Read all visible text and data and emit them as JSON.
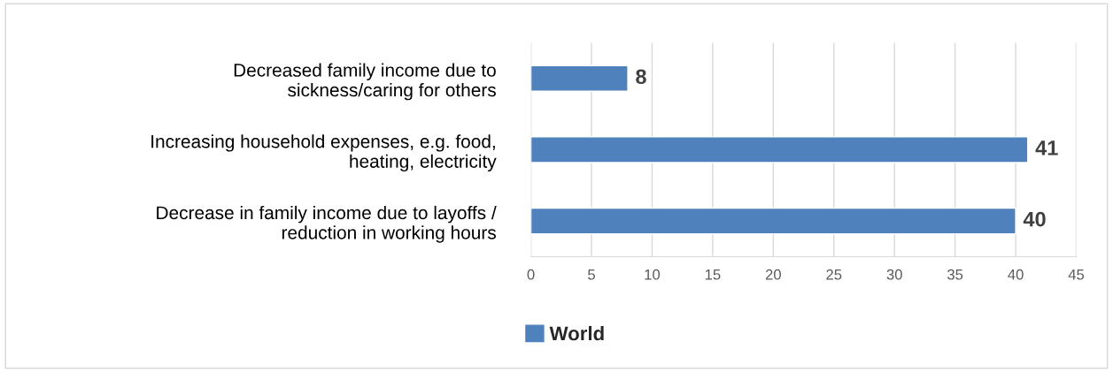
{
  "chart_data": {
    "type": "bar",
    "orientation": "horizontal",
    "categories": [
      "Decreased family income due to\nsickness/caring for others",
      "Increasing household expenses, e.g. food,\nheating, electricity",
      "Decrease in family income due to layoffs /\nreduction in working hours"
    ],
    "series": [
      {
        "name": "World",
        "color": "#4f81bd",
        "values": [
          8,
          41,
          40
        ]
      }
    ],
    "xlim": [
      0,
      45
    ],
    "xticks": [
      0,
      5,
      10,
      15,
      20,
      25,
      30,
      35,
      40,
      45
    ],
    "grid": "x",
    "legend": "bottom",
    "data_labels": true
  }
}
